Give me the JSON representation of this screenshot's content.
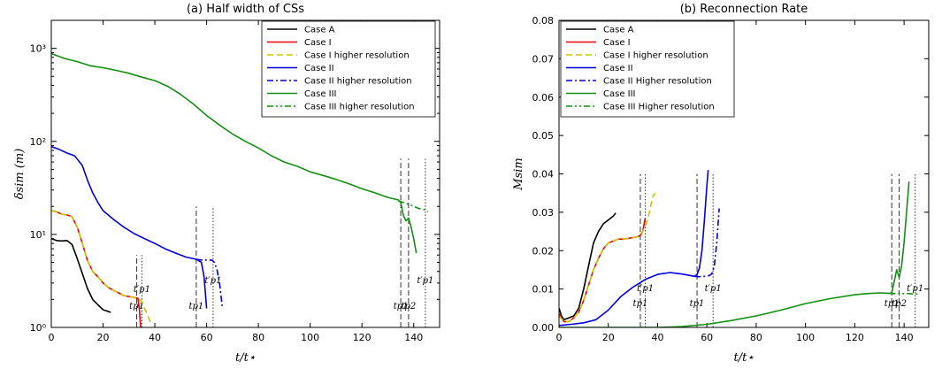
{
  "chart_data": [
    {
      "type": "line",
      "title": "(a) Half width of CSs",
      "xlabel": "t/t⋆",
      "ylabel": "δsim (m)",
      "xlim": [
        0,
        150
      ],
      "ylim": [
        1,
        2000
      ],
      "yscale": "log",
      "xticks": [
        "0",
        "20",
        "40",
        "60",
        "80",
        "100",
        "120",
        "140"
      ],
      "yticks": [
        "10⁰",
        "10¹",
        "10²",
        "10³"
      ],
      "legend": "top-right",
      "series": [
        {
          "name": "Case A",
          "color": "#000000",
          "dash": "solid",
          "x": [
            0,
            2,
            4,
            6,
            8,
            10,
            12,
            14,
            16,
            18,
            20,
            23
          ],
          "y": [
            9,
            8.6,
            8.5,
            8.6,
            7.8,
            5.5,
            3.8,
            2.6,
            2.0,
            1.75,
            1.55,
            1.45
          ]
        },
        {
          "name": "Case I",
          "color": "#e8000b",
          "dash": "solid",
          "x": [
            0,
            2,
            4,
            6,
            8,
            10,
            12,
            14,
            16,
            18,
            20,
            22,
            24,
            26,
            28,
            30,
            32,
            33.5,
            34,
            34.5,
            35
          ],
          "y": [
            18,
            17.5,
            16.5,
            16.2,
            15.5,
            12,
            8,
            5.2,
            4,
            3.5,
            3,
            2.7,
            2.5,
            2.35,
            2.2,
            2.15,
            2.1,
            2.05,
            1.6,
            1.0,
            0.9
          ]
        },
        {
          "name": "Case I higher resolution",
          "color": "#c8c800",
          "dash": "dashed",
          "x": [
            0,
            2,
            4,
            6,
            8,
            10,
            12,
            14,
            16,
            18,
            20,
            22,
            24,
            26,
            28,
            30,
            32,
            33.5,
            35,
            36,
            37,
            38.5
          ],
          "y": [
            18,
            17.5,
            16.5,
            16.2,
            15.5,
            12,
            8,
            5.2,
            4,
            3.5,
            3,
            2.7,
            2.5,
            2.35,
            2.2,
            2.15,
            2.1,
            2.05,
            1.9,
            1.6,
            1.4,
            1.1
          ]
        },
        {
          "name": "Case II",
          "color": "#0000dd",
          "dash": "solid",
          "x": [
            0,
            3,
            6,
            9,
            12,
            14,
            16,
            18,
            20,
            24,
            28,
            32,
            36,
            40,
            44,
            48,
            52,
            56,
            58,
            59,
            60
          ],
          "y": [
            88,
            82,
            75,
            70,
            55,
            38,
            28,
            22,
            18,
            14.5,
            12,
            10.2,
            9,
            8,
            7,
            6.3,
            5.7,
            5.4,
            5.0,
            3.5,
            1.6
          ]
        },
        {
          "name": "Case II higher resolution",
          "color": "#0000dd",
          "dash": "dashdot",
          "x": [
            56,
            58,
            60,
            62,
            63,
            64,
            65,
            66
          ],
          "y": [
            5.4,
            5.3,
            5.3,
            5.3,
            5.0,
            4.2,
            3.0,
            1.7
          ]
        },
        {
          "name": "Case III",
          "color": "#138f13",
          "dash": "solid",
          "x": [
            0,
            5,
            10,
            15,
            20,
            25,
            30,
            35,
            40,
            45,
            50,
            55,
            60,
            65,
            70,
            75,
            80,
            85,
            90,
            95,
            100,
            105,
            110,
            115,
            120,
            125,
            130,
            134,
            135,
            136,
            137,
            138,
            139,
            140,
            141
          ],
          "y": [
            880,
            780,
            720,
            650,
            620,
            580,
            540,
            490,
            450,
            390,
            320,
            250,
            190,
            150,
            120,
            100,
            85,
            70,
            60,
            54,
            47,
            43,
            39,
            35,
            31,
            28,
            25,
            23.5,
            22,
            16,
            14,
            15,
            12,
            9,
            6.3
          ]
        },
        {
          "name": "Case III higher resolution",
          "color": "#138f13",
          "dash": "dashdotdot",
          "x": [
            134,
            136,
            138,
            140,
            142,
            144,
            145.5
          ],
          "y": [
            23,
            22,
            21,
            20,
            19,
            18.5,
            17.5
          ]
        }
      ],
      "markers": [
        {
          "x": 33,
          "style": "dashed",
          "ytop": 6,
          "label": "tp1",
          "label_y": 1.58
        },
        {
          "x": 35,
          "style": "dotted",
          "ytop": 6,
          "label": "t′p1",
          "label_y": 2.4
        },
        {
          "x": 56,
          "style": "dashed",
          "ytop": 20,
          "label": "tp1",
          "label_y": 1.58
        },
        {
          "x": 62.5,
          "style": "dotted",
          "ytop": 20,
          "label": "t′p1",
          "label_y": 3.0
        },
        {
          "x": 135,
          "style": "dashed",
          "ytop": 65,
          "label": "tp1",
          "label_y": 1.58
        },
        {
          "x": 138,
          "style": "dashed",
          "ytop": 65,
          "label": "tp2",
          "label_y": 1.58
        },
        {
          "x": 144.5,
          "style": "dotted",
          "ytop": 65,
          "label": "t′p1",
          "label_y": 3.0
        }
      ]
    },
    {
      "type": "line",
      "title": "(b) Reconnection Rate",
      "xlabel": "t/t⋆",
      "ylabel": "Msim",
      "xlim": [
        0,
        150
      ],
      "ylim": [
        0,
        0.08
      ],
      "xticks": [
        "0",
        "20",
        "40",
        "60",
        "80",
        "100",
        "120",
        "140"
      ],
      "yticks": [
        "0.00",
        "0.01",
        "0.02",
        "0.03",
        "0.04",
        "0.05",
        "0.06",
        "0.07",
        "0.08"
      ],
      "legend": "top-left",
      "series": [
        {
          "name": "Case A",
          "color": "#000000",
          "dash": "solid",
          "x": [
            0,
            1,
            2,
            4,
            6,
            8,
            10,
            12,
            14,
            16,
            18,
            20,
            22,
            23
          ],
          "y": [
            0.005,
            0.003,
            0.002,
            0.0025,
            0.003,
            0.005,
            0.01,
            0.016,
            0.022,
            0.025,
            0.027,
            0.028,
            0.029,
            0.0298
          ]
        },
        {
          "name": "Case I",
          "color": "#e8000b",
          "dash": "solid",
          "x": [
            0,
            1,
            2,
            4,
            6,
            8,
            10,
            12,
            14,
            16,
            18,
            20,
            22,
            24,
            26,
            28,
            30,
            32,
            33,
            34,
            35
          ],
          "y": [
            0.0035,
            0.0025,
            0.0015,
            0.0015,
            0.0025,
            0.004,
            0.007,
            0.011,
            0.015,
            0.018,
            0.0205,
            0.022,
            0.0225,
            0.023,
            0.023,
            0.0232,
            0.0234,
            0.0236,
            0.024,
            0.025,
            0.0285
          ]
        },
        {
          "name": "Case I higher resolution",
          "color": "#c8c800",
          "dash": "dashed",
          "x": [
            0,
            2,
            4,
            6,
            8,
            10,
            12,
            14,
            16,
            18,
            20,
            22,
            24,
            26,
            28,
            30,
            32,
            34,
            36,
            37,
            38,
            39
          ],
          "y": [
            0.003,
            0.0015,
            0.0015,
            0.0025,
            0.004,
            0.007,
            0.011,
            0.015,
            0.018,
            0.0205,
            0.022,
            0.0225,
            0.023,
            0.023,
            0.0232,
            0.0234,
            0.0236,
            0.025,
            0.028,
            0.031,
            0.034,
            0.035
          ]
        },
        {
          "name": "Case II",
          "color": "#0000dd",
          "dash": "solid",
          "x": [
            0,
            5,
            10,
            15,
            20,
            25,
            30,
            35,
            40,
            45,
            50,
            55,
            56,
            57,
            58,
            59,
            60,
            60.5
          ],
          "y": [
            0.0005,
            0.0008,
            0.0012,
            0.002,
            0.0045,
            0.008,
            0.0105,
            0.0125,
            0.0138,
            0.0143,
            0.0139,
            0.0133,
            0.0138,
            0.0155,
            0.02,
            0.028,
            0.037,
            0.041
          ]
        },
        {
          "name": "Case II Higher resolution",
          "color": "#0000dd",
          "dash": "dashdot",
          "x": [
            55,
            57,
            59,
            61,
            62,
            63,
            64,
            65
          ],
          "y": [
            0.0133,
            0.0132,
            0.0133,
            0.0135,
            0.014,
            0.016,
            0.022,
            0.031
          ]
        },
        {
          "name": "Case III",
          "color": "#138f13",
          "dash": "solid",
          "x": [
            0,
            10,
            20,
            30,
            40,
            50,
            60,
            70,
            80,
            90,
            100,
            110,
            120,
            125,
            130,
            134,
            135,
            136,
            137,
            138,
            139,
            140,
            141,
            142
          ],
          "y": [
            0,
            0,
            0,
            0,
            0,
            0.0002,
            0.0008,
            0.0018,
            0.003,
            0.0045,
            0.0062,
            0.0075,
            0.0085,
            0.0088,
            0.009,
            0.0089,
            0.009,
            0.012,
            0.015,
            0.013,
            0.016,
            0.022,
            0.03,
            0.038
          ]
        },
        {
          "name": "Case III Higher resolution",
          "color": "#138f13",
          "dash": "dashdotdot",
          "x": [
            134,
            136,
            138,
            140,
            142,
            144,
            146
          ],
          "y": [
            0.0089,
            0.0088,
            0.0089,
            0.0088,
            0.0088,
            0.0087,
            0.0087
          ]
        }
      ],
      "markers": [
        {
          "x": 33,
          "style": "dashed",
          "ytop": 0.04,
          "label": "tp1",
          "label_y": 0.0055
        },
        {
          "x": 35,
          "style": "dotted",
          "ytop": 0.04,
          "label": "t′p1",
          "label_y": 0.0095
        },
        {
          "x": 56,
          "style": "dashed",
          "ytop": 0.04,
          "label": "tp1",
          "label_y": 0.0055
        },
        {
          "x": 62.5,
          "style": "dotted",
          "ytop": 0.04,
          "label": "t′p1",
          "label_y": 0.0095
        },
        {
          "x": 135,
          "style": "dashed",
          "ytop": 0.04,
          "label": "tp1",
          "label_y": 0.0055
        },
        {
          "x": 138,
          "style": "dashed",
          "ytop": 0.04,
          "label": "tp2",
          "label_y": 0.0055
        },
        {
          "x": 144.5,
          "style": "dotted",
          "ytop": 0.04,
          "label": "t′p1",
          "label_y": 0.0095
        }
      ]
    }
  ]
}
